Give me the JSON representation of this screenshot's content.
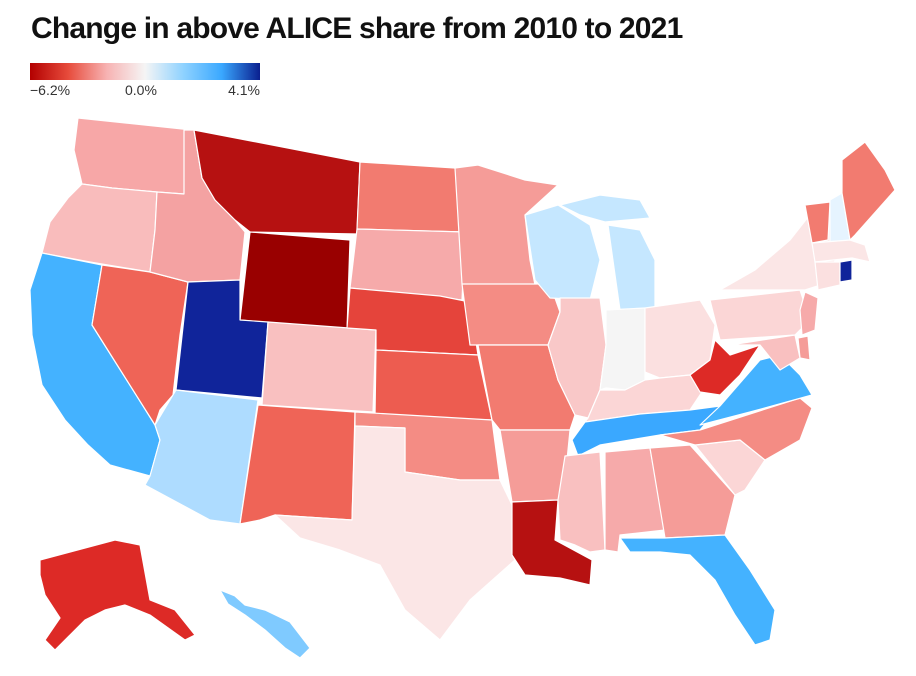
{
  "title": "Change in above ALICE share from 2010 to 2021",
  "legend": {
    "min_label": "−6.2%",
    "mid_label": "0.0%",
    "max_label": "4.1%",
    "scale_colors": [
      "#b30000",
      "#e74c3c",
      "#f7b2b2",
      "#f5f5f5",
      "#8fd2ff",
      "#3aa8ff",
      "#0a1f8f"
    ]
  },
  "map": {
    "type": "choropleth",
    "region": "United States",
    "state_colors": {
      "WA": "#f7a7a7",
      "OR": "#f9bcbc",
      "CA": "#44b2ff",
      "NV": "#ef6457",
      "ID": "#f4a2a2",
      "MT": "#b61111",
      "WY": "#990000",
      "UT": "#10249a",
      "AZ": "#aedcff",
      "CO": "#f9c0c0",
      "NM": "#ef6457",
      "ND": "#f27b70",
      "SD": "#f6aaaa",
      "NE": "#e5443b",
      "KS": "#ed5c50",
      "OK": "#f48c84",
      "TX": "#fbe6e6",
      "MN": "#f59c98",
      "IA": "#f48c84",
      "MO": "#f27b70",
      "AR": "#f59c98",
      "LA": "#b61111",
      "WI": "#c5e7ff",
      "IL": "#f9c8c8",
      "MI": "#c5e7ff",
      "IN": "#f5f5f5",
      "OH": "#fbe0e0",
      "KY": "#fbd6d6",
      "TN": "#3aa8ff",
      "MS": "#f9c0c0",
      "AL": "#f6aaaa",
      "GA": "#f59c98",
      "FL": "#44b2ff",
      "SC": "#fbd6d6",
      "NC": "#f48c84",
      "VA": "#44b2ff",
      "WV": "#dd2a26",
      "PA": "#fbd6d6",
      "NY": "#fbe6e6",
      "VT": "#f27b70",
      "NH": "#e6f4ff",
      "ME": "#f27b70",
      "MA": "#fbe6e6",
      "CT": "#fbe0e0",
      "RI": "#10249a",
      "NJ": "#f6aaaa",
      "DE": "#f59c98",
      "MD": "#f9c0c0",
      "AK": "#dd2a26",
      "HI": "#7fcaff"
    }
  }
}
